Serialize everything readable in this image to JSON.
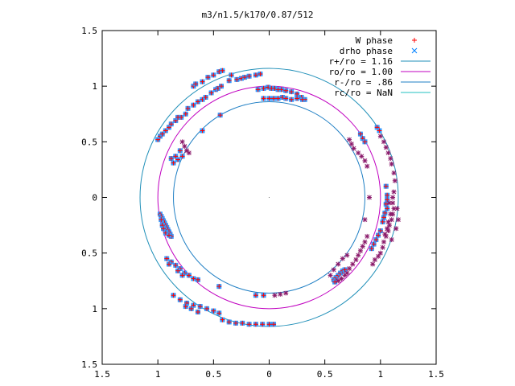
{
  "chart_data": {
    "type": "scatter",
    "title": "m3/n1.5/k170/0.87/512",
    "xlim": [
      -1.5,
      1.5
    ],
    "ylim": [
      -1.5,
      1.5
    ],
    "x_ticks": [
      -1.5,
      -1,
      -0.5,
      0,
      0.5,
      1,
      1.5
    ],
    "y_ticks": [
      -1.5,
      -1,
      -0.5,
      0,
      0.5,
      1,
      1.5
    ],
    "x_tick_labels": [
      "1.5",
      "1",
      "0.5",
      "0",
      "0.5",
      "1",
      "1.5"
    ],
    "y_tick_labels": [
      "1.5",
      "1",
      "0.5",
      "0",
      "0.5",
      "1",
      "1.5"
    ],
    "grid": false,
    "legend_position": "top-right",
    "legend": [
      {
        "label": "W phase",
        "marker": "plus",
        "color": "#ff0000"
      },
      {
        "label": "drho phase",
        "marker": "cross",
        "color": "#0080ff"
      },
      {
        "label": "r+/ro = 1.16",
        "marker": "line",
        "color": "#1f8fb8"
      },
      {
        "label": "ro/ro = 1.00",
        "marker": "line",
        "color": "#c000c0"
      },
      {
        "label": "r-/ro = .86",
        "marker": "line",
        "color": "#1f7fc4"
      },
      {
        "label": "rc/ro = NaN",
        "marker": "line",
        "color": "#20c0c0"
      }
    ],
    "circles": [
      {
        "name": "r+/ro = 1.16",
        "radius": 1.16,
        "color": "#1f8fb8"
      },
      {
        "name": "ro/ro = 1.00",
        "radius": 1.0,
        "color": "#c000c0"
      },
      {
        "name": "r-/ro = .86",
        "radius": 0.86,
        "color": "#1f7fc4"
      }
    ],
    "colors": {
      "plus": "#ff0000",
      "star": "#8b1a6b",
      "square": "#3399ff",
      "frame": "#000000"
    },
    "series": [
      {
        "name": "drho phase",
        "marker": "square",
        "points": [
          [
            -1.0,
            0.52
          ],
          [
            -0.98,
            0.55
          ],
          [
            -0.96,
            0.57
          ],
          [
            -0.93,
            0.6
          ],
          [
            -0.9,
            0.63
          ],
          [
            -0.88,
            0.66
          ],
          [
            -0.84,
            0.69
          ],
          [
            -0.79,
            0.72
          ],
          [
            -0.75,
            0.75
          ],
          [
            -0.73,
            0.8
          ],
          [
            -0.68,
            0.83
          ],
          [
            -0.64,
            0.86
          ],
          [
            -0.6,
            0.88
          ],
          [
            -0.57,
            0.9
          ],
          [
            -0.52,
            0.94
          ],
          [
            -0.48,
            0.97
          ],
          [
            -0.46,
            0.98
          ],
          [
            -0.43,
            1.0
          ],
          [
            -0.36,
            1.05
          ],
          [
            -0.29,
            1.06
          ],
          [
            -0.25,
            1.07
          ],
          [
            -0.22,
            1.08
          ],
          [
            -0.18,
            1.09
          ],
          [
            -0.12,
            1.1
          ],
          [
            -0.08,
            1.11
          ],
          [
            -0.68,
            1.0
          ],
          [
            -0.66,
            1.02
          ],
          [
            -0.6,
            1.04
          ],
          [
            -0.55,
            1.08
          ],
          [
            -0.5,
            1.1
          ],
          [
            -0.45,
            1.13
          ],
          [
            -0.42,
            1.14
          ],
          [
            -0.34,
            1.1
          ],
          [
            -0.1,
            0.97
          ],
          [
            -0.05,
            0.98
          ],
          [
            -0.01,
            0.99
          ],
          [
            0.02,
            0.98
          ],
          [
            0.05,
            0.98
          ],
          [
            0.08,
            0.97
          ],
          [
            0.11,
            0.97
          ],
          [
            0.15,
            0.96
          ],
          [
            0.2,
            0.95
          ],
          [
            0.25,
            0.93
          ],
          [
            0.29,
            0.9
          ],
          [
            0.32,
            0.88
          ],
          [
            -0.05,
            0.89
          ],
          [
            0.0,
            0.89
          ],
          [
            0.04,
            0.89
          ],
          [
            0.08,
            0.89
          ],
          [
            0.12,
            0.9
          ],
          [
            0.15,
            0.89
          ],
          [
            0.2,
            0.88
          ],
          [
            0.25,
            0.89
          ],
          [
            0.3,
            0.88
          ],
          [
            -0.6,
            0.6
          ],
          [
            -0.82,
            0.72
          ],
          [
            -0.44,
            0.74
          ],
          [
            -0.8,
            0.42
          ],
          [
            -0.78,
            0.37
          ],
          [
            -0.82,
            0.34
          ],
          [
            -0.86,
            0.31
          ],
          [
            -0.88,
            0.35
          ],
          [
            -0.84,
            0.37
          ],
          [
            -0.98,
            -0.15
          ],
          [
            -0.97,
            -0.17
          ],
          [
            -0.96,
            -0.19
          ],
          [
            -0.95,
            -0.21
          ],
          [
            -0.94,
            -0.23
          ],
          [
            -0.93,
            -0.25
          ],
          [
            -0.92,
            -0.27
          ],
          [
            -0.91,
            -0.29
          ],
          [
            -0.9,
            -0.31
          ],
          [
            -0.89,
            -0.33
          ],
          [
            -0.88,
            -0.35
          ],
          [
            -0.97,
            -0.2
          ],
          [
            -0.96,
            -0.25
          ],
          [
            -0.95,
            -0.28
          ],
          [
            -0.93,
            -0.32
          ],
          [
            -0.9,
            -0.34
          ],
          [
            -0.92,
            -0.55
          ],
          [
            -0.88,
            -0.58
          ],
          [
            -0.84,
            -0.61
          ],
          [
            -0.8,
            -0.64
          ],
          [
            -0.76,
            -0.68
          ],
          [
            -0.72,
            -0.7
          ],
          [
            -0.68,
            -0.73
          ],
          [
            -0.64,
            -0.74
          ],
          [
            -0.9,
            -0.6
          ],
          [
            -0.82,
            -0.66
          ],
          [
            -0.78,
            -0.7
          ],
          [
            -0.86,
            -0.88
          ],
          [
            -0.8,
            -0.92
          ],
          [
            -0.74,
            -0.95
          ],
          [
            -0.68,
            -0.97
          ],
          [
            -0.62,
            -0.98
          ],
          [
            -0.56,
            -1.0
          ],
          [
            -0.5,
            -1.02
          ],
          [
            -0.45,
            -1.04
          ],
          [
            -0.75,
            -0.98
          ],
          [
            -0.7,
            -1.0
          ],
          [
            -0.64,
            -1.03
          ],
          [
            -0.42,
            -1.1
          ],
          [
            -0.36,
            -1.12
          ],
          [
            -0.3,
            -1.13
          ],
          [
            -0.24,
            -1.13
          ],
          [
            -0.18,
            -1.14
          ],
          [
            -0.12,
            -1.14
          ],
          [
            -0.06,
            -1.14
          ],
          [
            0.0,
            -1.14
          ],
          [
            0.04,
            -1.14
          ],
          [
            -0.45,
            -0.8
          ],
          [
            -0.12,
            -0.88
          ],
          [
            -0.05,
            -0.88
          ],
          [
            0.58,
            -0.74
          ],
          [
            0.6,
            -0.72
          ],
          [
            0.62,
            -0.7
          ],
          [
            0.64,
            -0.68
          ],
          [
            0.66,
            -0.66
          ],
          [
            0.68,
            -0.65
          ],
          [
            0.59,
            -0.76
          ],
          [
            0.82,
            0.57
          ],
          [
            0.84,
            0.53
          ],
          [
            0.86,
            0.5
          ],
          [
            0.97,
            0.63
          ],
          [
            0.99,
            0.6
          ],
          [
            1.05,
            0.1
          ],
          [
            1.06,
            0.02
          ],
          [
            1.06,
            -0.02
          ],
          [
            1.05,
            -0.06
          ],
          [
            1.06,
            -0.1
          ],
          [
            1.04,
            -0.14
          ],
          [
            1.03,
            -0.18
          ],
          [
            1.02,
            -0.22
          ],
          [
            1.0,
            -0.3
          ],
          [
            0.98,
            -0.34
          ],
          [
            0.96,
            -0.38
          ],
          [
            0.94,
            -0.42
          ],
          [
            0.92,
            -0.46
          ]
        ]
      },
      {
        "name": "W phase",
        "marker": "star",
        "points": [
          [
            1.0,
            0.55
          ],
          [
            1.03,
            0.5
          ],
          [
            1.05,
            0.45
          ],
          [
            1.07,
            0.4
          ],
          [
            1.09,
            0.35
          ],
          [
            1.1,
            0.3
          ],
          [
            1.12,
            0.22
          ],
          [
            1.13,
            0.15
          ],
          [
            1.12,
            0.05
          ],
          [
            1.11,
            0.0
          ],
          [
            1.11,
            -0.05
          ],
          [
            1.12,
            -0.1
          ],
          [
            1.11,
            -0.15
          ],
          [
            1.1,
            -0.2
          ],
          [
            1.08,
            -0.25
          ],
          [
            1.07,
            -0.3
          ],
          [
            1.05,
            -0.35
          ],
          [
            1.03,
            -0.4
          ],
          [
            1.02,
            -0.45
          ],
          [
            1.0,
            -0.5
          ],
          [
            0.98,
            -0.53
          ],
          [
            0.95,
            -0.56
          ],
          [
            0.93,
            -0.6
          ],
          [
            1.15,
            -0.1
          ],
          [
            1.16,
            -0.2
          ],
          [
            1.14,
            -0.28
          ],
          [
            1.1,
            -0.38
          ],
          [
            1.08,
            -0.05
          ],
          [
            1.09,
            -0.15
          ],
          [
            1.07,
            -0.22
          ],
          [
            1.06,
            -0.28
          ],
          [
            1.04,
            -0.33
          ],
          [
            0.72,
            0.52
          ],
          [
            0.74,
            0.48
          ],
          [
            0.76,
            0.44
          ],
          [
            0.8,
            0.4
          ],
          [
            0.83,
            0.37
          ],
          [
            0.86,
            0.33
          ],
          [
            0.88,
            0.28
          ],
          [
            0.88,
            -0.35
          ],
          [
            0.86,
            -0.4
          ],
          [
            0.84,
            -0.44
          ],
          [
            0.82,
            -0.48
          ],
          [
            0.8,
            -0.52
          ],
          [
            0.78,
            -0.56
          ],
          [
            0.75,
            -0.6
          ],
          [
            0.72,
            -0.64
          ],
          [
            0.7,
            -0.68
          ],
          [
            0.68,
            -0.7
          ],
          [
            0.65,
            -0.73
          ],
          [
            0.62,
            -0.75
          ],
          [
            0.55,
            -0.7
          ],
          [
            0.58,
            -0.65
          ],
          [
            0.62,
            -0.6
          ],
          [
            0.66,
            -0.55
          ],
          [
            0.7,
            -0.52
          ],
          [
            0.05,
            -0.88
          ],
          [
            0.1,
            -0.87
          ],
          [
            0.15,
            -0.86
          ],
          [
            0.9,
            0.0
          ],
          [
            0.86,
            -0.2
          ],
          [
            -0.78,
            0.5
          ],
          [
            -0.76,
            0.46
          ],
          [
            -0.74,
            0.42
          ],
          [
            -0.72,
            0.4
          ]
        ]
      }
    ]
  }
}
